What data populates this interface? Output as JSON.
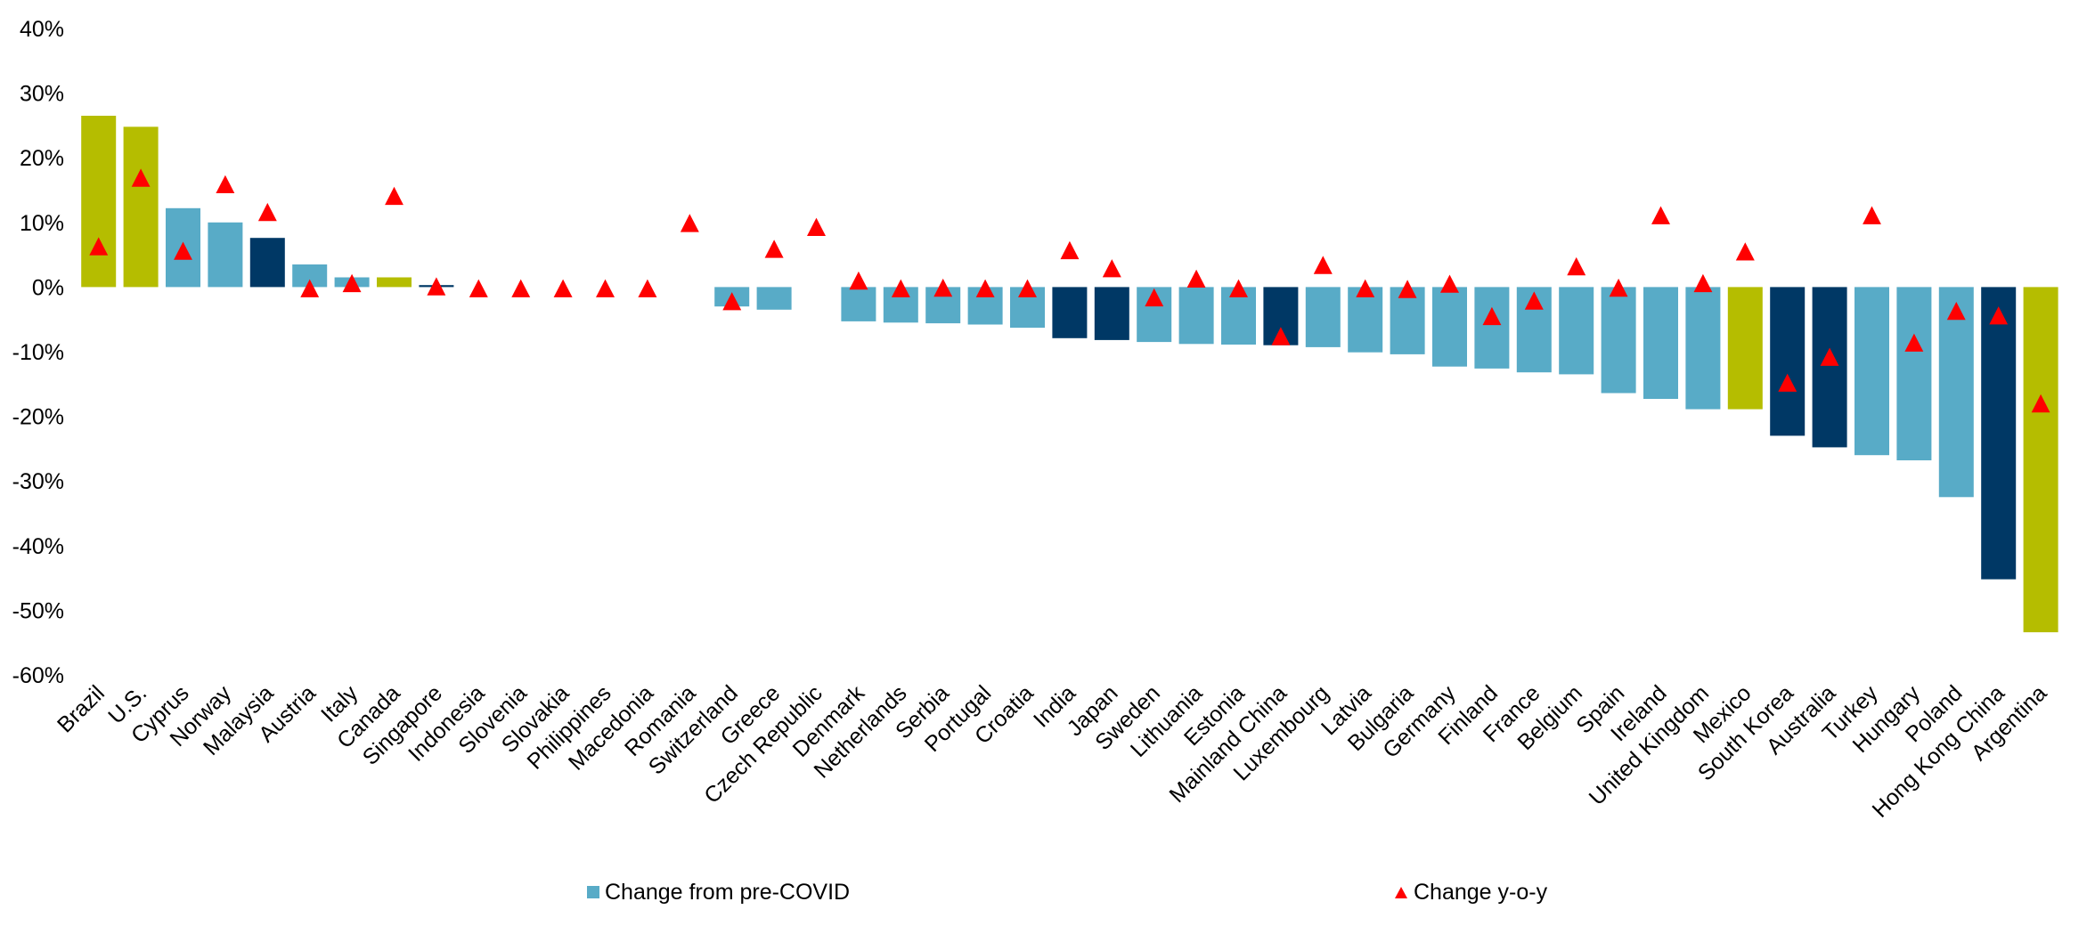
{
  "chart_data": {
    "type": "bar",
    "categories": [
      "Brazil",
      "U.S.",
      "Cyprus",
      "Norway",
      "Malaysia",
      "Austria",
      "Italy",
      "Canada",
      "Singapore",
      "Indonesia",
      "Slovenia",
      "Slovakia",
      "Philippines",
      "Macedonia",
      "Romania",
      "Switzerland",
      "Greece",
      "Czech Republic",
      "Denmark",
      "Netherlands",
      "Serbia",
      "Portugal",
      "Croatia",
      "India",
      "Japan",
      "Sweden",
      "Lithuania",
      "Estonia",
      "Mainland China",
      "Luxembourg",
      "Latvia",
      "Bulgaria",
      "Germany",
      "Finland",
      "France",
      "Belgium",
      "Spain",
      "Ireland",
      "United Kingdom",
      "Mexico",
      "South Korea",
      "Australia",
      "Turkey",
      "Hungary",
      "Poland",
      "Hong Kong China",
      "Argentina"
    ],
    "series": [
      {
        "name": "Change from pre-COVID",
        "type": "bar",
        "unit": "%",
        "values": [
          26.5,
          24.8,
          12.2,
          10.0,
          7.6,
          3.5,
          1.5,
          1.5,
          0.3,
          null,
          null,
          null,
          null,
          null,
          null,
          -3.0,
          -3.5,
          null,
          -5.3,
          -5.5,
          -5.6,
          -5.8,
          -6.3,
          -7.9,
          -8.2,
          -8.5,
          -8.8,
          -8.9,
          -9.0,
          -9.3,
          -10.1,
          -10.4,
          -12.3,
          -12.6,
          -13.2,
          -13.5,
          -16.4,
          -17.3,
          -18.9,
          -18.9,
          -23.0,
          -24.8,
          -26.0,
          -26.8,
          -32.5,
          -45.2,
          -53.4
        ],
        "bar_colors": [
          "#b5bd00",
          "#b5bd00",
          "#58abc7",
          "#58abc7",
          "#003865",
          "#58abc7",
          "#58abc7",
          "#b5bd00",
          "#003865",
          "#58abc7",
          "#58abc7",
          "#58abc7",
          "#58abc7",
          "#58abc7",
          "#58abc7",
          "#58abc7",
          "#58abc7",
          "#58abc7",
          "#58abc7",
          "#58abc7",
          "#58abc7",
          "#58abc7",
          "#58abc7",
          "#003865",
          "#003865",
          "#58abc7",
          "#58abc7",
          "#58abc7",
          "#003865",
          "#58abc7",
          "#58abc7",
          "#58abc7",
          "#58abc7",
          "#58abc7",
          "#58abc7",
          "#58abc7",
          "#58abc7",
          "#58abc7",
          "#58abc7",
          "#b5bd00",
          "#003865",
          "#003865",
          "#58abc7",
          "#58abc7",
          "#58abc7",
          "#003865",
          "#b5bd00"
        ]
      },
      {
        "name": "Change y-o-y",
        "type": "marker",
        "marker": "triangle",
        "unit": "%",
        "values": [
          6.2,
          16.8,
          5.5,
          15.8,
          11.5,
          -0.3,
          0.5,
          14.0,
          0.0,
          -0.3,
          -0.3,
          -0.3,
          -0.3,
          -0.3,
          9.8,
          -2.3,
          5.8,
          9.2,
          0.9,
          -0.3,
          -0.2,
          -0.3,
          -0.3,
          5.6,
          2.8,
          -1.7,
          1.2,
          -0.3,
          -7.7,
          3.3,
          -0.3,
          -0.4,
          0.4,
          -4.6,
          -2.2,
          3.1,
          -0.2,
          11.0,
          0.5,
          5.4,
          -14.9,
          -10.9,
          11.0,
          -8.7,
          -3.8,
          -4.5,
          -18.1
        ]
      }
    ],
    "title": "",
    "xlabel": "",
    "ylabel": "",
    "ylim": [
      -60,
      40
    ],
    "yticks": [
      40,
      30,
      20,
      10,
      0,
      -10,
      -20,
      -30,
      -40,
      -50,
      -60
    ],
    "ytick_labels": [
      "40%",
      "30%",
      "20%",
      "10%",
      "0%",
      "-10%",
      "-20%",
      "-30%",
      "-40%",
      "-50%",
      "-60%"
    ],
    "grid": false,
    "legend_position": "bottom"
  },
  "colors": {
    "light_blue": "#58abc7",
    "dark_navy": "#003865",
    "olive_green": "#b5bd00",
    "marker_red": "#ff0000"
  },
  "legend": {
    "bar_label": "Change from pre-COVID",
    "marker_label": "Change y-o-y"
  }
}
